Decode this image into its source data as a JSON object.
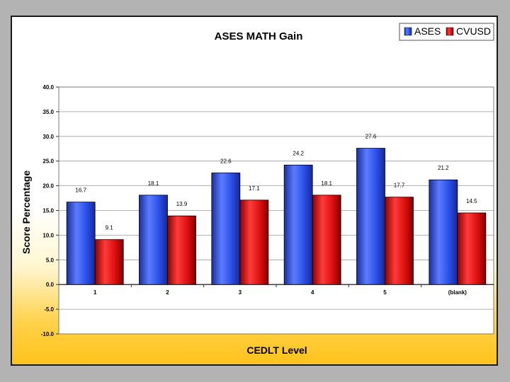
{
  "chart_data": {
    "type": "bar",
    "title": "ASES MATH Gain",
    "xlabel": "CEDLT Level",
    "ylabel": "Score Percentage",
    "categories": [
      "1",
      "2",
      "3",
      "4",
      "5",
      "(blank)"
    ],
    "series": [
      {
        "name": "ASES",
        "color": "#2a4fe6",
        "values": [
          16.7,
          18.1,
          22.6,
          24.2,
          27.6,
          21.2
        ],
        "labels": [
          "16.7",
          "18.1",
          "22.6",
          "24.2",
          "27.6",
          "21.2"
        ]
      },
      {
        "name": "CVUSD",
        "color": "#dd1010",
        "values": [
          9.1,
          13.9,
          17.1,
          18.1,
          17.7,
          14.5
        ],
        "labels": [
          "9.1",
          "13.9",
          "17.1",
          "18.1",
          "17.7",
          "14.5"
        ]
      }
    ],
    "ylim": [
      -10,
      40
    ],
    "yticks": [
      40,
      35,
      30,
      25,
      20,
      15,
      10,
      5,
      0,
      -5,
      -10
    ],
    "ytick_labels": [
      "40.0",
      "35.0",
      "30.0",
      "25.0",
      "20.0",
      "15.0",
      "10.0",
      "5.0",
      "0.0",
      "-5.0",
      "-10.0"
    ],
    "grid": true,
    "legend": "top-right"
  }
}
